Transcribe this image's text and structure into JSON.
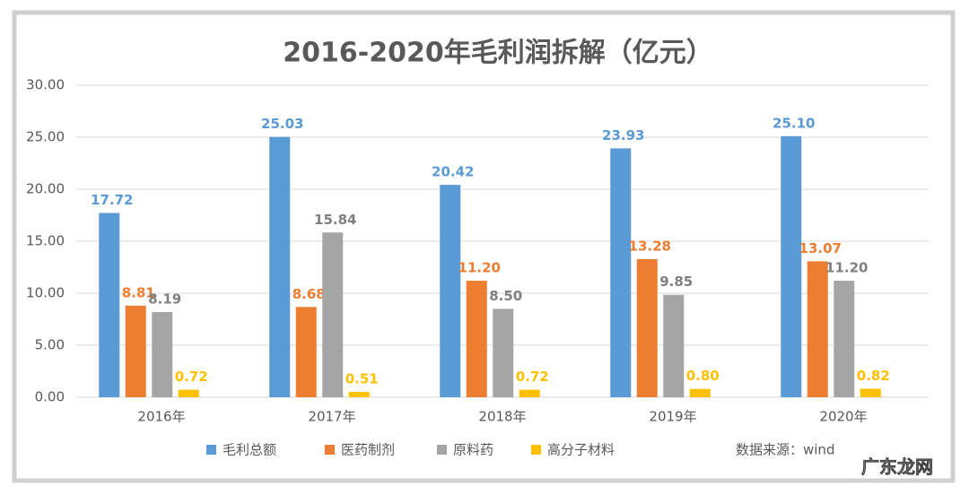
{
  "chart_data": {
    "type": "bar",
    "title": "2016-2020年毛利润拆解（亿元）",
    "categories": [
      "2016年",
      "2017年",
      "2018年",
      "2019年",
      "2020年"
    ],
    "series": [
      {
        "name": "毛利总额",
        "color": "#5b9bd5",
        "values": [
          17.72,
          25.03,
          20.42,
          23.93,
          25.1
        ],
        "value_labels": [
          "17.72",
          "25.03",
          "20.42",
          "23.93",
          "25.10"
        ]
      },
      {
        "name": "医药制剂",
        "color": "#ed7d31",
        "values": [
          8.81,
          8.68,
          11.2,
          13.28,
          13.07
        ],
        "value_labels": [
          "8.81",
          "8.68",
          "11.20",
          "13.28",
          "13.07"
        ]
      },
      {
        "name": "原料药",
        "color": "#a5a5a5",
        "values": [
          8.19,
          15.84,
          8.5,
          9.85,
          11.2
        ],
        "value_labels": [
          "8.19",
          "15.84",
          "8.50",
          "9.85",
          "11.20"
        ]
      },
      {
        "name": "高分子材料",
        "color": "#ffc000",
        "values": [
          0.72,
          0.51,
          0.72,
          0.8,
          0.82
        ],
        "value_labels": [
          "0.72",
          "0.51",
          "0.72",
          "0.80",
          "0.82"
        ]
      }
    ],
    "ylim": [
      0,
      30
    ],
    "yticks": [
      {
        "value": 0,
        "label": "0.00"
      },
      {
        "value": 5,
        "label": "5.00"
      },
      {
        "value": 10,
        "label": "10.00"
      },
      {
        "value": 15,
        "label": "15.00"
      },
      {
        "value": 20,
        "label": "20.00"
      },
      {
        "value": 25,
        "label": "25.00"
      },
      {
        "value": 30,
        "label": "30.00"
      }
    ],
    "grid": true,
    "legend": "bottom",
    "source": "数据来源：wind",
    "watermark": "广东龙网"
  }
}
